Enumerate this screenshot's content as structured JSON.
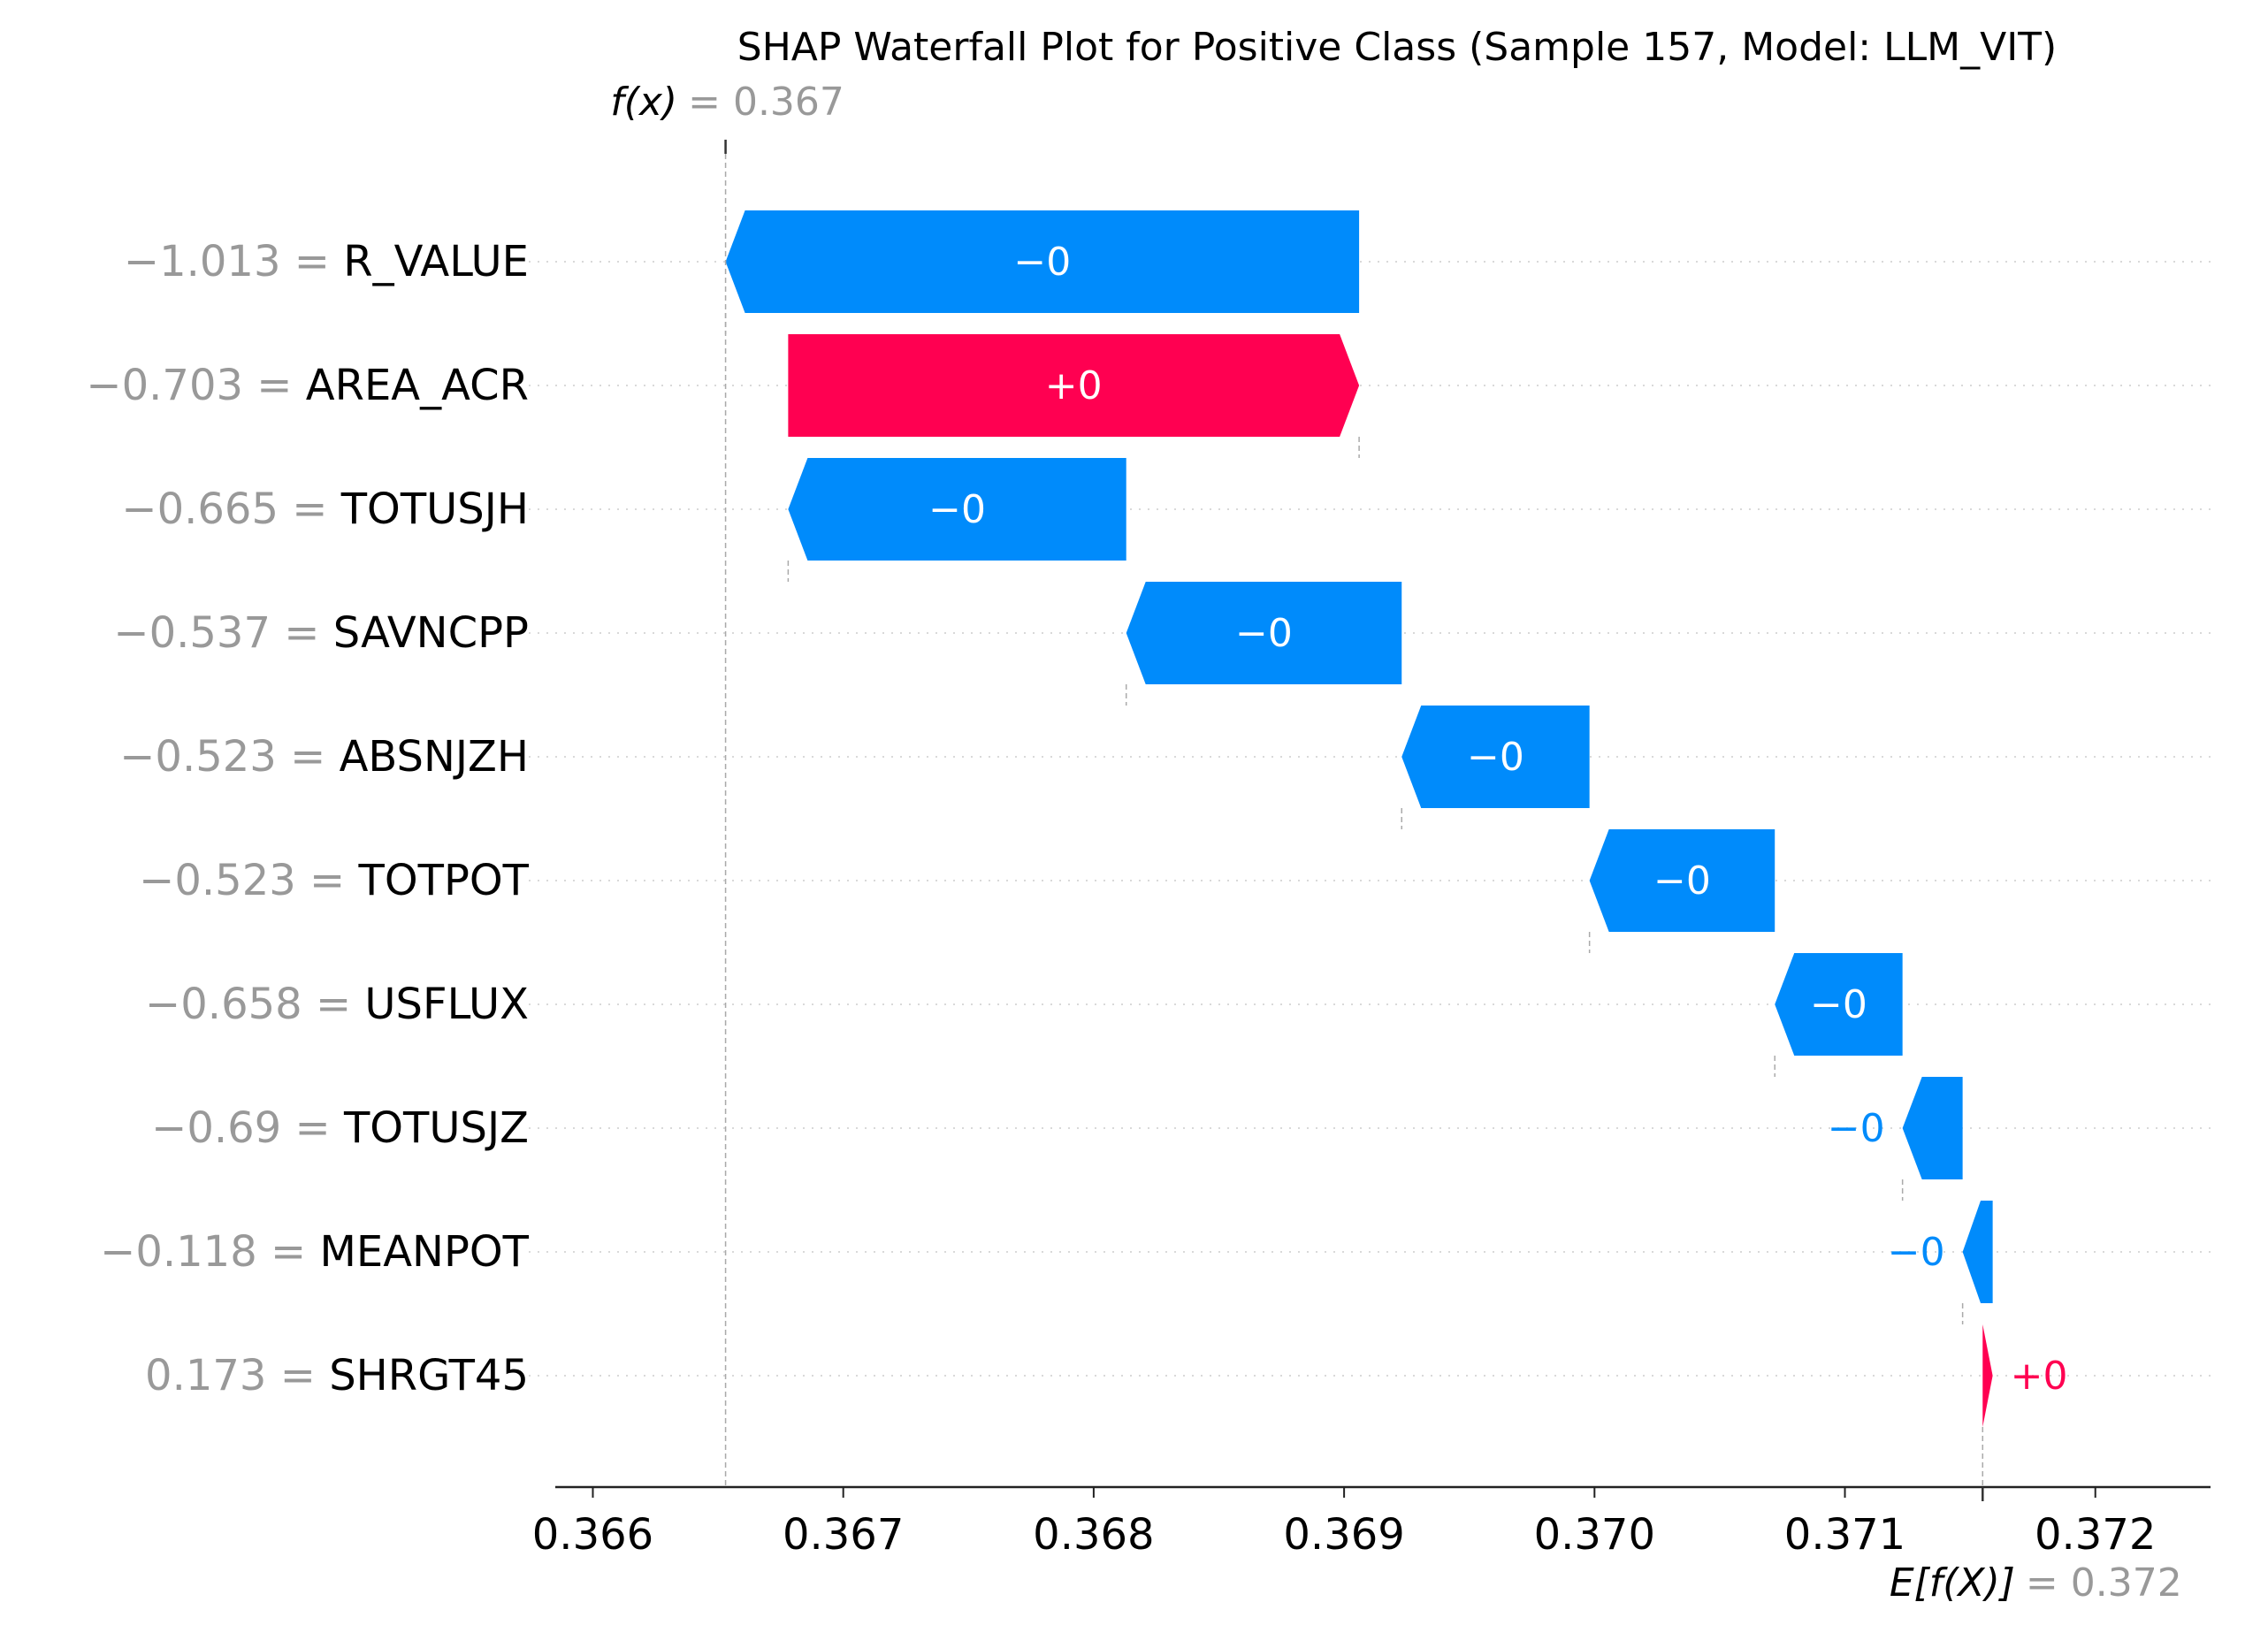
{
  "chart_data": {
    "type": "waterfall",
    "title": "SHAP Waterfall Plot for Positive Class (Sample 157, Model: LLM_VIT)",
    "fx": {
      "label": "f(x)",
      "value_text": "= 0.367",
      "value": 0.36653
    },
    "efx": {
      "label": "E[f(X)]",
      "value_text": "= 0.372",
      "value": 0.37155
    },
    "xlim": [
      0.36585,
      0.37246
    ],
    "xticks": [
      "0.366",
      "0.367",
      "0.368",
      "0.369",
      "0.370",
      "0.371",
      "0.372"
    ],
    "xtick_values": [
      0.366,
      0.367,
      0.368,
      0.369,
      0.37,
      0.371,
      0.372
    ],
    "colors": {
      "positive": "#ff0051",
      "negative": "#008bfb",
      "muted": "#999999"
    },
    "rows": [
      {
        "feature": "R_VALUE",
        "value_text": "−1.013 =",
        "start": 0.36906,
        "end": 0.36653,
        "label": "−0",
        "sign": "neg"
      },
      {
        "feature": "AREA_ACR",
        "value_text": "−0.703 =",
        "start": 0.36678,
        "end": 0.36906,
        "label": "+0",
        "sign": "pos"
      },
      {
        "feature": "TOTUSJH",
        "value_text": "−0.665 =",
        "start": 0.36813,
        "end": 0.36678,
        "label": "−0",
        "sign": "neg"
      },
      {
        "feature": "SAVNCPP",
        "value_text": "−0.537 =",
        "start": 0.36923,
        "end": 0.36813,
        "label": "−0",
        "sign": "neg"
      },
      {
        "feature": "ABSNJZH",
        "value_text": "−0.523 =",
        "start": 0.36998,
        "end": 0.36923,
        "label": "−0",
        "sign": "neg"
      },
      {
        "feature": "TOTPOT",
        "value_text": "−0.523 =",
        "start": 0.37072,
        "end": 0.36998,
        "label": "−0",
        "sign": "neg"
      },
      {
        "feature": "USFLUX",
        "value_text": "−0.658 =",
        "start": 0.37123,
        "end": 0.37072,
        "label": "−0",
        "sign": "neg"
      },
      {
        "feature": "TOTUSJZ",
        "value_text": "−0.69 =",
        "start": 0.37147,
        "end": 0.37123,
        "label": "−0",
        "sign": "neg"
      },
      {
        "feature": "MEANPOT",
        "value_text": "−0.118 =",
        "start": 0.37159,
        "end": 0.37147,
        "label": "−0",
        "sign": "neg"
      },
      {
        "feature": "SHRGT45",
        "value_text": "0.173 =",
        "start": 0.37155,
        "end": 0.37159,
        "label": "+0",
        "sign": "pos"
      }
    ]
  }
}
